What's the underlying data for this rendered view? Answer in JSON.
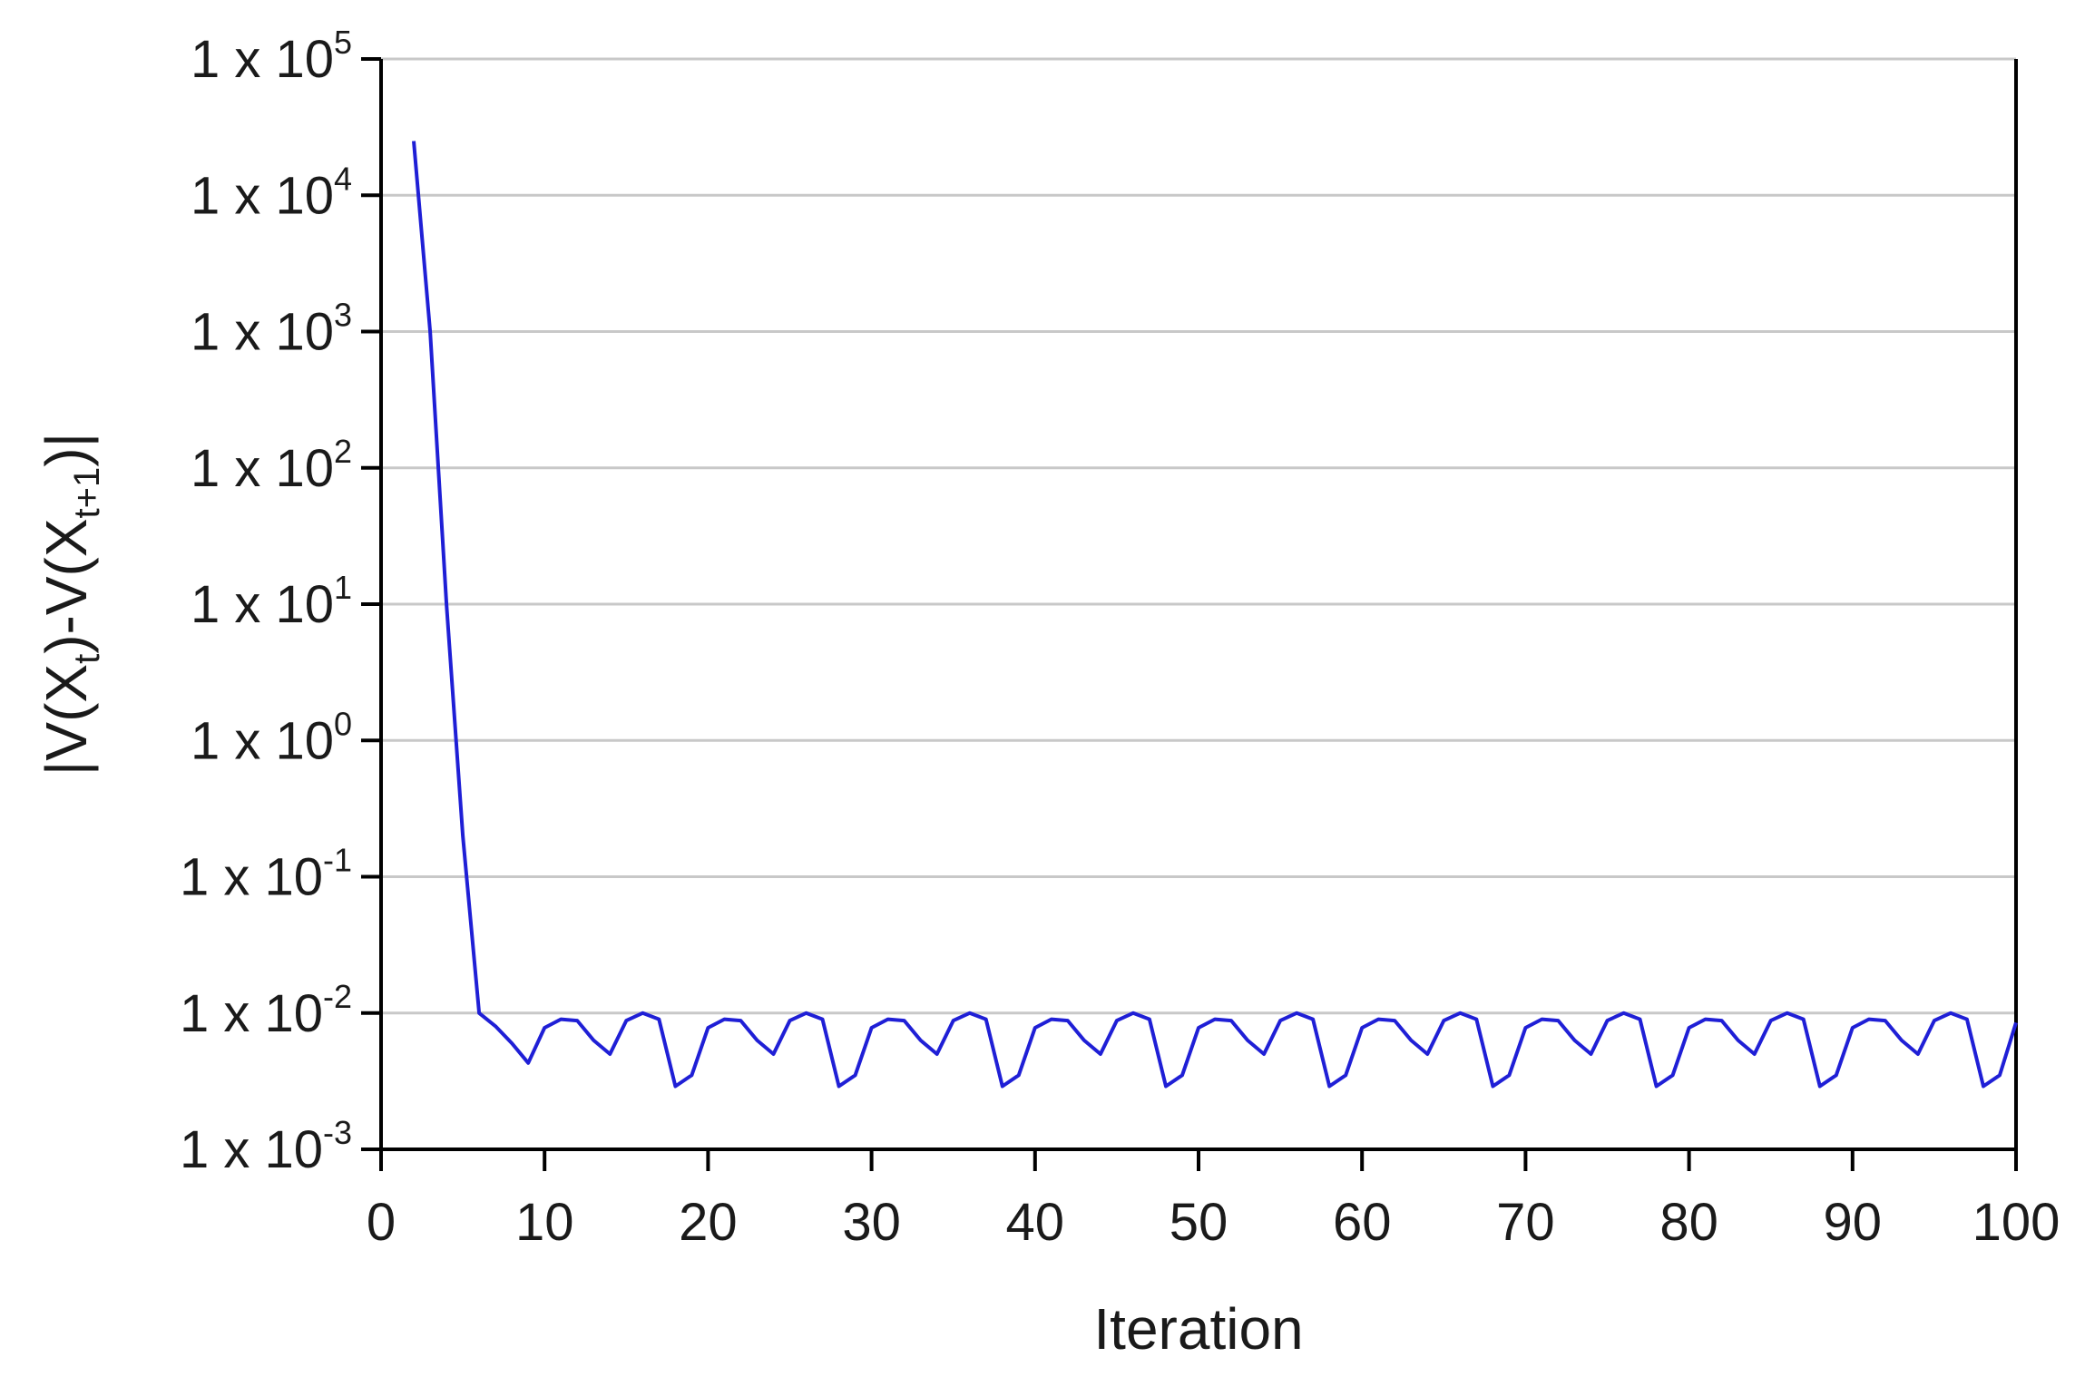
{
  "chart_data": {
    "type": "line",
    "title": "",
    "xlabel": "Iteration",
    "ylabel": {
      "parts": [
        {
          "text": "|V(X",
          "sub": false
        },
        {
          "text": "t",
          "sub": true
        },
        {
          "text": ")-V(X",
          "sub": false
        },
        {
          "text": "t+1",
          "sub": true
        },
        {
          "text": ")|",
          "sub": false
        }
      ]
    },
    "y_scale": "log",
    "xlim": [
      0,
      100
    ],
    "ylim": [
      0.001,
      100000
    ],
    "x_ticks": [
      0,
      10,
      20,
      30,
      40,
      50,
      60,
      70,
      80,
      90,
      100
    ],
    "y_ticks": [
      {
        "value": 100000,
        "base": "1 x 10",
        "exp": "5"
      },
      {
        "value": 10000,
        "base": "1 x 10",
        "exp": "4"
      },
      {
        "value": 1000,
        "base": "1 x 10",
        "exp": "3"
      },
      {
        "value": 100,
        "base": "1 x 10",
        "exp": "2"
      },
      {
        "value": 10,
        "base": "1 x 10",
        "exp": "1"
      },
      {
        "value": 1,
        "base": "1 x 10",
        "exp": "0"
      },
      {
        "value": 0.1,
        "base": "1 x 10",
        "exp": "-1"
      },
      {
        "value": 0.01,
        "base": "1 x 10",
        "exp": "-2"
      },
      {
        "value": 0.001,
        "base": "1 x 10",
        "exp": "-3"
      }
    ],
    "grid": "horizontal",
    "line_color": "#1f1fd6",
    "series": [
      {
        "x": [
          2,
          3,
          4,
          5,
          6,
          7,
          8,
          9,
          10,
          11,
          12,
          13,
          14,
          15,
          16,
          17,
          18,
          19,
          20,
          21,
          22,
          23,
          24,
          25,
          26,
          27,
          28,
          29,
          30,
          31,
          32,
          33,
          34,
          35,
          36,
          37,
          38,
          39,
          40,
          41,
          42,
          43,
          44,
          45,
          46,
          47,
          48,
          49,
          50,
          51,
          52,
          53,
          54,
          55,
          56,
          57,
          58,
          59,
          60,
          61,
          62,
          63,
          64,
          65,
          66,
          67,
          68,
          69,
          70,
          71,
          72,
          73,
          74,
          75,
          76,
          77,
          78,
          79,
          80,
          81,
          82,
          83,
          84,
          85,
          86,
          87,
          88,
          89,
          90,
          91,
          92,
          93,
          94,
          95,
          96,
          97,
          98,
          99,
          100
        ],
        "values": [
          25000,
          1000,
          10,
          0.2,
          0.01,
          0.008,
          0.006,
          0.0043,
          0.0078,
          0.009,
          0.0088,
          0.0063,
          0.005,
          0.0088,
          0.01,
          0.009,
          0.0029,
          0.0035,
          0.0078,
          0.009,
          0.0088,
          0.0063,
          0.005,
          0.0088,
          0.01,
          0.009,
          0.0029,
          0.0035,
          0.0078,
          0.009,
          0.0088,
          0.0063,
          0.005,
          0.0088,
          0.01,
          0.009,
          0.0029,
          0.0035,
          0.0078,
          0.009,
          0.0088,
          0.0063,
          0.005,
          0.0088,
          0.01,
          0.009,
          0.0029,
          0.0035,
          0.0078,
          0.009,
          0.0088,
          0.0063,
          0.005,
          0.0088,
          0.01,
          0.009,
          0.0029,
          0.0035,
          0.0078,
          0.009,
          0.0088,
          0.0063,
          0.005,
          0.0088,
          0.01,
          0.009,
          0.0029,
          0.0035,
          0.0078,
          0.009,
          0.0088,
          0.0063,
          0.005,
          0.0088,
          0.01,
          0.009,
          0.0029,
          0.0035,
          0.0078,
          0.009,
          0.0088,
          0.0063,
          0.005,
          0.0088,
          0.01,
          0.009,
          0.0029,
          0.0035,
          0.0078,
          0.009,
          0.0088,
          0.0063,
          0.005,
          0.0088,
          0.01,
          0.009,
          0.0029,
          0.0035,
          0.0085
        ]
      }
    ]
  }
}
